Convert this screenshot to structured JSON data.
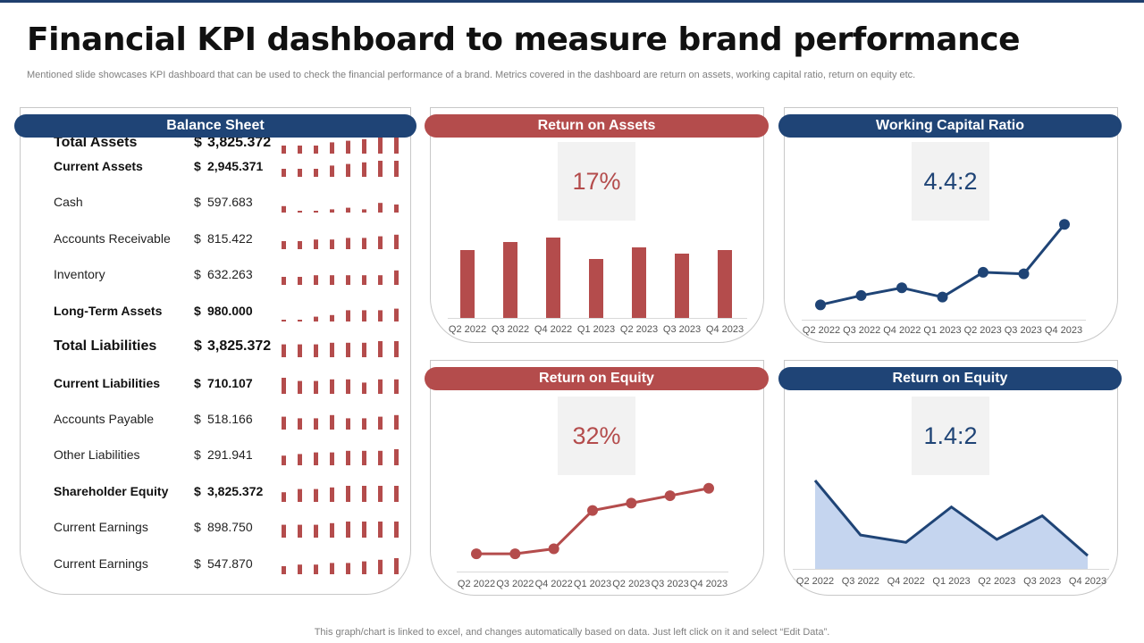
{
  "header": {
    "title": "Financial KPI dashboard to measure brand performance",
    "subtitle": "Mentioned slide showcases KPI dashboard that can be used to check the financial performance of a brand. Metrics covered in the dashboard are return on assets, working capital ratio, return on equity etc.",
    "footer": "This graph/chart is linked to excel,  and changes automatically based on data. Just left click on it and select “Edit Data”."
  },
  "colors": {
    "navy": "#1f4476",
    "red": "#b44c4c",
    "area_fill": "#c5d5ef",
    "kpi_bg": "#f2f2f2"
  },
  "balance_sheet": {
    "title": "Balance Sheet",
    "currency": "$",
    "rows": [
      {
        "label": "Total Assets",
        "value": "3,825.372",
        "style": "bold large",
        "spark": [
          0.5,
          0.5,
          0.5,
          0.7,
          0.8,
          0.9,
          1.0,
          1.0
        ]
      },
      {
        "label": "Current Assets",
        "value": "2,945.371",
        "style": "bold",
        "spark": [
          0.5,
          0.5,
          0.5,
          0.7,
          0.8,
          0.9,
          1.0,
          1.0
        ]
      },
      {
        "label": "Cash",
        "value": "597.683",
        "style": "plain",
        "spark": [
          0.4,
          0.1,
          0.1,
          0.2,
          0.3,
          0.2,
          0.6,
          0.5
        ]
      },
      {
        "label": "Accounts Receivable",
        "value": "815.422",
        "style": "plain",
        "spark": [
          0.5,
          0.5,
          0.6,
          0.6,
          0.7,
          0.7,
          0.8,
          0.9
        ]
      },
      {
        "label": "Inventory",
        "value": "632.263",
        "style": "plain",
        "spark": [
          0.5,
          0.5,
          0.6,
          0.6,
          0.6,
          0.6,
          0.6,
          0.9
        ]
      },
      {
        "label": "Long-Term Assets",
        "value": "980.000",
        "style": "bold",
        "spark": [
          0.1,
          0.1,
          0.3,
          0.4,
          0.7,
          0.7,
          0.7,
          0.8
        ]
      },
      {
        "label": "Total Liabilities",
        "value": "3,825.372",
        "style": "bold large",
        "spark": [
          0.8,
          0.8,
          0.8,
          0.9,
          0.9,
          0.9,
          1.0,
          1.0
        ]
      },
      {
        "label": "Current Liabilities",
        "value": "710.107",
        "style": "bold",
        "spark": [
          1.0,
          0.8,
          0.8,
          0.9,
          0.9,
          0.7,
          0.9,
          0.9
        ]
      },
      {
        "label": "Accounts Payable",
        "value": "518.166",
        "style": "plain",
        "spark": [
          0.8,
          0.7,
          0.7,
          0.9,
          0.7,
          0.7,
          0.8,
          0.9
        ]
      },
      {
        "label": "Other Liabilities",
        "value": "291.941",
        "style": "plain",
        "spark": [
          0.6,
          0.7,
          0.8,
          0.8,
          0.9,
          0.9,
          0.9,
          1.0
        ]
      },
      {
        "label": "Shareholder Equity",
        "value": "3,825.372",
        "style": "bold",
        "spark": [
          0.6,
          0.8,
          0.8,
          0.9,
          1.0,
          1.0,
          1.0,
          1.0
        ]
      },
      {
        "label": "Current Earnings",
        "value": "898.750",
        "style": "plain",
        "spark": [
          0.8,
          0.8,
          0.8,
          0.9,
          1.0,
          1.0,
          1.0,
          1.0
        ]
      },
      {
        "label": "Current Earnings",
        "value": "547.870",
        "style": "plain",
        "spark": [
          0.5,
          0.6,
          0.6,
          0.7,
          0.7,
          0.8,
          0.9,
          1.0
        ]
      }
    ]
  },
  "panels": {
    "roa": {
      "title": "Return on Assets",
      "kpi": "17%"
    },
    "wcr": {
      "title": "Working Capital Ratio",
      "kpi": "4.4:2"
    },
    "roe1": {
      "title": "Return on Equity",
      "kpi": "32%"
    },
    "roe2": {
      "title": "Return on Equity",
      "kpi": "1.4:2"
    }
  },
  "chart_data": [
    {
      "id": "roa",
      "type": "bar",
      "title": "Return on Assets",
      "categories": [
        "Q2 2022",
        "Q3 2022",
        "Q4 2022",
        "Q1 2023",
        "Q2 2023",
        "Q3 2023",
        "Q4 2023"
      ],
      "values": [
        76,
        85,
        90,
        66,
        79,
        72,
        76
      ],
      "ylim": [
        0,
        100
      ]
    },
    {
      "id": "wcr",
      "type": "line",
      "title": "Working Capital Ratio",
      "categories": [
        "Q2 2022",
        "Q3 2022",
        "Q4 2022",
        "Q1 2023",
        "Q2 2023",
        "Q3 2023",
        "Q4 2023"
      ],
      "values": [
        5,
        11,
        16,
        10,
        26,
        25,
        57
      ],
      "ylim": [
        0,
        60
      ]
    },
    {
      "id": "roe1",
      "type": "line",
      "title": "Return on Equity",
      "categories": [
        "Q2 2022",
        "Q3 2022",
        "Q4 2022",
        "Q1 2023",
        "Q2 2023",
        "Q3 2023",
        "Q4 2023"
      ],
      "values": [
        5,
        5,
        9,
        40,
        46,
        52,
        58
      ],
      "ylim": [
        0,
        60
      ]
    },
    {
      "id": "roe2",
      "type": "area",
      "title": "Return on Equity",
      "categories": [
        "Q2 2022",
        "Q3 2022",
        "Q4 2022",
        "Q1 2023",
        "Q2 2023",
        "Q3 2023",
        "Q4 2023"
      ],
      "values": [
        100,
        63,
        58,
        82,
        60,
        76,
        49
      ],
      "ylim": [
        0,
        100
      ]
    }
  ]
}
